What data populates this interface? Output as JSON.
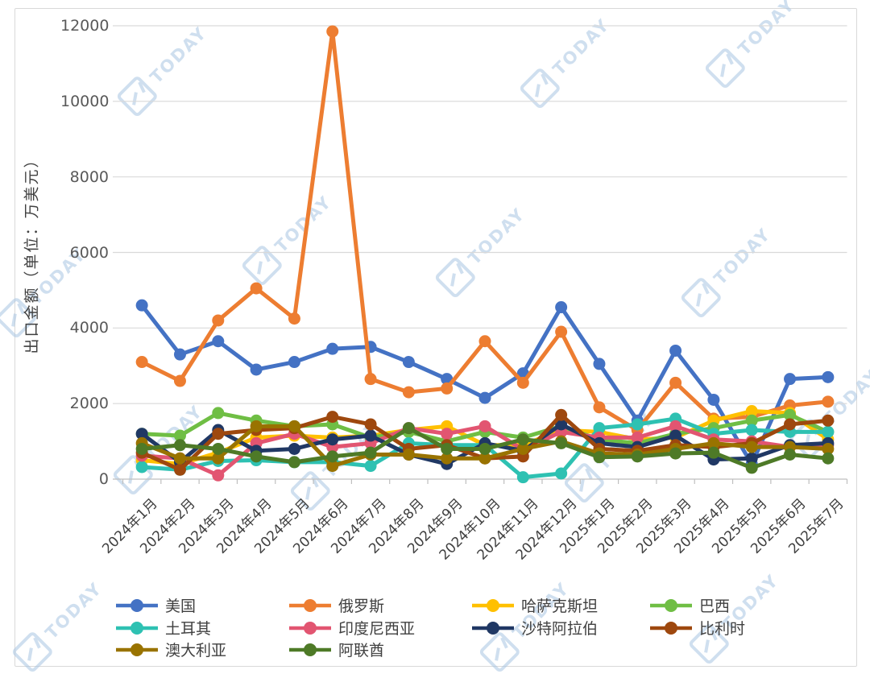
{
  "watermark": {
    "brand": "TODAY"
  },
  "chart_data": {
    "type": "line",
    "title": "",
    "ylabel": "出口金额（单位：万美元）",
    "xlabel": "",
    "ylim": [
      0,
      12000
    ],
    "yticks": [
      0,
      2000,
      4000,
      6000,
      8000,
      10000,
      12000
    ],
    "grid": "horizontal",
    "legend_position": "bottom",
    "categories": [
      "2024年1月",
      "2024年2月",
      "2024年3月",
      "2024年4月",
      "2024年5月",
      "2024年6月",
      "2024年7月",
      "2024年8月",
      "2024年9月",
      "2024年10月",
      "2024年11月",
      "2024年12月",
      "2025年1月",
      "2025年2月",
      "2025年3月",
      "2025年4月",
      "2025年5月",
      "2025年6月",
      "2025年7月"
    ],
    "series": [
      {
        "name": "美国",
        "color": "#4472C4",
        "values": [
          4600,
          3300,
          3650,
          2900,
          3100,
          3450,
          3500,
          3100,
          2650,
          2150,
          2800,
          4550,
          3050,
          1550,
          3400,
          2100,
          400,
          2650,
          2700
        ]
      },
      {
        "name": "俄罗斯",
        "color": "#ED7D31",
        "values": [
          3100,
          2600,
          4200,
          5050,
          4250,
          11850,
          2650,
          2300,
          2400,
          3650,
          2550,
          3900,
          1900,
          1300,
          2550,
          1600,
          1650,
          1950,
          2050
        ]
      },
      {
        "name": "哈萨克斯坦",
        "color": "#FFC000",
        "values": [
          500,
          400,
          700,
          1100,
          1150,
          1100,
          1150,
          1300,
          1400,
          900,
          900,
          1300,
          1250,
          1050,
          1100,
          1550,
          1800,
          1750,
          1050
        ]
      },
      {
        "name": "巴西",
        "color": "#6FBE44",
        "values": [
          1200,
          1150,
          1750,
          1550,
          1400,
          1450,
          1100,
          1250,
          1000,
          1250,
          1100,
          1400,
          1050,
          950,
          1200,
          1350,
          1550,
          1700,
          1250
        ]
      },
      {
        "name": "土耳其",
        "color": "#2EC1B2",
        "values": [
          320,
          250,
          480,
          500,
          450,
          450,
          350,
          950,
          900,
          900,
          50,
          150,
          1350,
          1450,
          1600,
          1200,
          1300,
          1250,
          1250
        ]
      },
      {
        "name": "印度尼西亚",
        "color": "#E25571",
        "values": [
          620,
          550,
          100,
          950,
          1200,
          850,
          950,
          1350,
          1200,
          1400,
          780,
          1250,
          1100,
          1100,
          1400,
          1050,
          1000,
          850,
          900
        ]
      },
      {
        "name": "沙特阿拉伯",
        "color": "#203864",
        "values": [
          1200,
          450,
          1300,
          750,
          800,
          1050,
          1150,
          650,
          400,
          950,
          750,
          1450,
          950,
          850,
          1150,
          520,
          550,
          900,
          950
        ]
      },
      {
        "name": "比利时",
        "color": "#9E480E",
        "values": [
          700,
          250,
          1200,
          1300,
          1350,
          1650,
          1450,
          800,
          900,
          550,
          600,
          1700,
          800,
          750,
          900,
          850,
          950,
          1450,
          1550
        ]
      },
      {
        "name": "澳大利亚",
        "color": "#997300",
        "values": [
          950,
          550,
          550,
          1400,
          1400,
          350,
          650,
          650,
          550,
          550,
          800,
          1000,
          680,
          650,
          800,
          950,
          850,
          850,
          800
        ]
      },
      {
        "name": "阿联酋",
        "color": "#4E7A27",
        "values": [
          800,
          900,
          800,
          600,
          450,
          600,
          700,
          1350,
          800,
          800,
          1050,
          950,
          580,
          600,
          680,
          700,
          300,
          650,
          550
        ]
      }
    ]
  }
}
